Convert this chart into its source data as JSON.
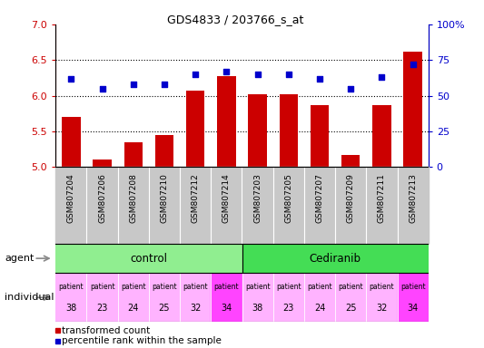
{
  "title": "GDS4833 / 203766_s_at",
  "samples": [
    "GSM807204",
    "GSM807206",
    "GSM807208",
    "GSM807210",
    "GSM807212",
    "GSM807214",
    "GSM807203",
    "GSM807205",
    "GSM807207",
    "GSM807209",
    "GSM807211",
    "GSM807213"
  ],
  "bar_values": [
    5.7,
    5.1,
    5.35,
    5.45,
    6.07,
    6.28,
    6.02,
    6.02,
    5.87,
    5.17,
    5.87,
    6.62
  ],
  "dot_values": [
    62,
    55,
    58,
    58,
    65,
    67,
    65,
    65,
    62,
    55,
    63,
    72
  ],
  "ylim_left": [
    5,
    7
  ],
  "ylim_right": [
    0,
    100
  ],
  "yticks_left": [
    5,
    5.5,
    6,
    6.5,
    7
  ],
  "yticks_right": [
    0,
    25,
    50,
    75,
    100
  ],
  "patients": [
    "38",
    "23",
    "24",
    "25",
    "32",
    "34",
    "38",
    "23",
    "24",
    "25",
    "32",
    "34"
  ],
  "control_color": "#90EE90",
  "cediranib_color": "#44DD55",
  "patient_colors": [
    "#FFB3FF",
    "#FFB3FF",
    "#FFB3FF",
    "#FFB3FF",
    "#FFB3FF",
    "#FF44FF",
    "#FFB3FF",
    "#FFB3FF",
    "#FFB3FF",
    "#FFB3FF",
    "#FFB3FF",
    "#FF44FF"
  ],
  "bar_color": "#CC0000",
  "dot_color": "#0000CC",
  "bar_bottom": 5,
  "left_axis_color": "#CC0000",
  "right_axis_color": "#0000CC",
  "xlabel_bg_color": "#C8C8C8",
  "grid_yticks": [
    5.5,
    6.0,
    6.5
  ],
  "legend_bar_label": "transformed count",
  "legend_dot_label": "percentile rank within the sample",
  "agent_label": "agent",
  "individual_label": "individual",
  "control_label": "control",
  "cediranib_label": "Cediranib"
}
